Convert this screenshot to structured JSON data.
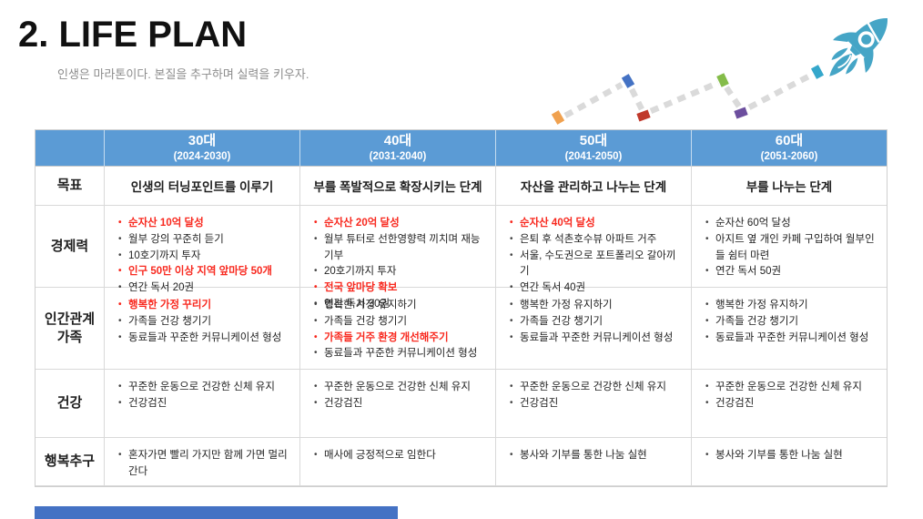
{
  "slide": {
    "title": "2. LIFE PLAN",
    "subtitle": "인생은 마라톤이다. 본질을 추구하며 실력을 키우자."
  },
  "colors": {
    "header_blue": "#5b9bd5",
    "footer_blue": "#4472c4",
    "red_highlight": "#f8281e",
    "rocket_teal": "#45a5c6",
    "trail_gray": "#dadada",
    "trail_orange": "#f0a14f",
    "trail_blue": "#4472c4",
    "trail_red": "#c0392b",
    "trail_green": "#84bc49",
    "trail_purple": "#6c4e9e",
    "trail_teal": "#35a7cb"
  },
  "table": {
    "columns": [
      {
        "label": "30대",
        "range": "(2024-2030)"
      },
      {
        "label": "40대",
        "range": "(2031-2040)"
      },
      {
        "label": "50대",
        "range": "(2041-2050)"
      },
      {
        "label": "60대",
        "range": "(2051-2060)"
      }
    ],
    "rows": [
      {
        "label": "목표",
        "kind": "center",
        "cells": [
          "인생의 터닝포인트를 이루기",
          "부를 폭발적으로 확장시키는 단계",
          "자산을 관리하고 나누는 단계",
          "부를 나누는 단계"
        ]
      },
      {
        "label": "경제력",
        "kind": "bullets",
        "cells": [
          [
            {
              "text": "순자산 10억 달성",
              "red": true
            },
            {
              "text": "월부 강의 꾸준히 듣기"
            },
            {
              "text": "10호기까지 투자"
            },
            {
              "text": "인구 50만 이상 지역 앞마당 50개",
              "red": true
            },
            {
              "text": "연간 독서 20권"
            }
          ],
          [
            {
              "text": "순자산 20억 달성",
              "red": true
            },
            {
              "text": "월부 튜터로 선한영향력 끼치며 재능기부"
            },
            {
              "text": "20호기까지 투자"
            },
            {
              "text": "전국 앞마당 확보",
              "red": true
            },
            {
              "text": "연간 독서 30권"
            }
          ],
          [
            {
              "text": "순자산 40억 달성",
              "red": true
            },
            {
              "text": "은퇴 후 석촌호수뷰 아파트 거주"
            },
            {
              "text": "서울, 수도권으로 포트폴리오 갈아끼기"
            },
            {
              "text": "연간 독서 40권"
            }
          ],
          [
            {
              "text": "순자산 60억 달성"
            },
            {
              "text": "아지트 옆 개인 카페 구입하여 월부인들 쉼터 마련"
            },
            {
              "text": "연간 독서 50권"
            }
          ]
        ]
      },
      {
        "label": "인간관계\n가족",
        "kind": "bullets",
        "cells": [
          [
            {
              "text": "행복한 가정 꾸리기",
              "red": true
            },
            {
              "text": "가족들 건강 챙기기"
            },
            {
              "text": "동료들과 꾸준한 커뮤니케이션 형성"
            }
          ],
          [
            {
              "text": "행복한 가정 유지하기"
            },
            {
              "text": "가족들 건강 챙기기"
            },
            {
              "text": "가족들 거주 환경 개선해주기",
              "red": true
            },
            {
              "text": "동료들과 꾸준한 커뮤니케이션 형성"
            }
          ],
          [
            {
              "text": "행복한 가정 유지하기"
            },
            {
              "text": "가족들 건강 챙기기"
            },
            {
              "text": "동료들과 꾸준한 커뮤니케이션 형성"
            }
          ],
          [
            {
              "text": "행복한 가정 유지하기"
            },
            {
              "text": "가족들 건강 챙기기"
            },
            {
              "text": "동료들과 꾸준한 커뮤니케이션 형성"
            }
          ]
        ]
      },
      {
        "label": "건강",
        "kind": "bullets",
        "cells": [
          [
            {
              "text": "꾸준한 운동으로 건강한 신체 유지"
            },
            {
              "text": "건강검진"
            }
          ],
          [
            {
              "text": "꾸준한 운동으로 건강한 신체 유지"
            },
            {
              "text": "건강검진"
            }
          ],
          [
            {
              "text": "꾸준한 운동으로 건강한 신체 유지"
            },
            {
              "text": "건강검진"
            }
          ],
          [
            {
              "text": "꾸준한 운동으로 건강한 신체 유지"
            },
            {
              "text": "건강검진"
            }
          ]
        ]
      },
      {
        "label": "행복추구",
        "kind": "bullets",
        "cells": [
          [
            {
              "text": "혼자가면 빨리 가지만 함께 가면 멀리 간다"
            }
          ],
          [
            {
              "text": "매사에 긍정적으로 임한다"
            }
          ],
          [
            {
              "text": "봉사와 기부를 통한 나눔 실현"
            }
          ],
          [
            {
              "text": "봉사와 기부를 통한 나눔 실현"
            }
          ]
        ]
      }
    ]
  }
}
